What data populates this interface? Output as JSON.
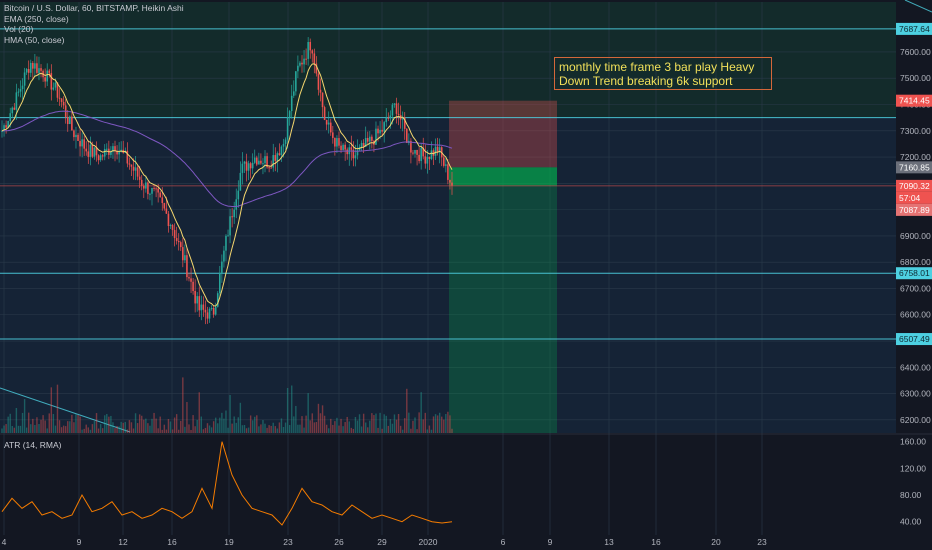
{
  "legend": {
    "symbol": "Bitcoin / U.S. Dollar, 60, BITSTAMP, Heikin Ashi",
    "ema": "EMA (250, close)",
    "vol": "Vol (20)",
    "hma": "HMA (50, close)"
  },
  "atr_legend": "ATR (14, RMA)",
  "annotation": {
    "line1": "monthly time frame 3 bar play Heavy",
    "line2": "Down Trend breaking 6k support"
  },
  "colors": {
    "background": "#131722",
    "up": "#26a69a",
    "down": "#ef5350",
    "hline": "#4dd0e1",
    "ema": "#7e57c2",
    "hma": "#f5d76e",
    "atr": "#f57c00",
    "stop_zone": "#ef5350",
    "target_zone": "#00c853",
    "note_border": "#d4673a",
    "note_text": "#f1e05a"
  },
  "chart_data": [
    {
      "type": "candlestick",
      "symbol": "BTCUSD",
      "interval": "60",
      "ylim": [
        6150,
        7790
      ],
      "y_ticks": [
        6200,
        6300,
        6400,
        6500,
        6600,
        6700,
        6800,
        6900,
        7000,
        7100,
        7200,
        7300,
        7400,
        7500,
        7600
      ],
      "y_tick_labels": [
        "6200.00",
        "6300.00",
        "6400.00",
        "6500.00",
        "6600.00",
        "6700.00",
        "6800.00",
        "6900.00",
        "7000.00",
        "7100.00",
        "7200.00",
        "7300.00",
        "7400.00",
        "7500.00",
        "7600.00"
      ],
      "x_labels": [
        "4",
        "9",
        "12",
        "16",
        "19",
        "23",
        "26",
        "29",
        "2020",
        "6",
        "9",
        "13",
        "16",
        "20",
        "23"
      ],
      "close_path": [
        {
          "label": "4",
          "close": 7300
        },
        {
          "label": "",
          "close": 7420
        },
        {
          "label": "",
          "close": 7560
        },
        {
          "label": "",
          "close": 7520
        },
        {
          "label": "9",
          "close": 7440
        },
        {
          "label": "",
          "close": 7300
        },
        {
          "label": "12",
          "close": 7230
        },
        {
          "label": "",
          "close": 7200
        },
        {
          "label": "",
          "close": 7250
        },
        {
          "label": "",
          "close": 7180
        },
        {
          "label": "16",
          "close": 7100
        },
        {
          "label": "",
          "close": 7050
        },
        {
          "label": "",
          "close": 6950
        },
        {
          "label": "",
          "close": 6800
        },
        {
          "label": "",
          "close": 6620
        },
        {
          "label": "",
          "close": 6600
        },
        {
          "label": "19",
          "close": 6900
        },
        {
          "label": "",
          "close": 7150
        },
        {
          "label": "",
          "close": 7200
        },
        {
          "label": "",
          "close": 7180
        },
        {
          "label": "",
          "close": 7250
        },
        {
          "label": "23",
          "close": 7530
        },
        {
          "label": "",
          "close": 7640
        },
        {
          "label": "",
          "close": 7330
        },
        {
          "label": "26",
          "close": 7230
        },
        {
          "label": "",
          "close": 7200
        },
        {
          "label": "",
          "close": 7250
        },
        {
          "label": "29",
          "close": 7300
        },
        {
          "label": "",
          "close": 7400
        },
        {
          "label": "",
          "close": 7240
        },
        {
          "label": "2020",
          "close": 7200
        },
        {
          "label": "",
          "close": 7230
        },
        {
          "label": "",
          "close": 7092
        }
      ],
      "horizontal_levels": [
        7687.64,
        7350,
        7090.32,
        6758.01,
        6507.49
      ],
      "price_badges": [
        {
          "label": "7687.64",
          "value": 7687.64,
          "kind": "level"
        },
        {
          "label": "7414.45",
          "value": 7414.45,
          "kind": "stop"
        },
        {
          "label": "7160.85",
          "value": 7160.85,
          "kind": "entry"
        },
        {
          "label": "7090.32",
          "value": 7090.32,
          "kind": "last"
        },
        {
          "label": "57:04",
          "value": 7070,
          "kind": "countdown"
        },
        {
          "label": "7087.89",
          "value": 7087.89,
          "kind": "pivot"
        },
        {
          "label": "6758.01",
          "value": 6758.01,
          "kind": "level"
        },
        {
          "label": "6507.49",
          "value": 6507.49,
          "kind": "level"
        }
      ],
      "short_position": {
        "entry": 7160.85,
        "stop": 7414.45,
        "target": 6150
      }
    },
    {
      "type": "line",
      "name": "ATR (14, RMA)",
      "ylim": [
        20,
        170
      ],
      "y_ticks": [
        40,
        80,
        120,
        160
      ],
      "y_tick_labels": [
        "40.00",
        "80.00",
        "120.00",
        "160.00"
      ],
      "values": [
        55,
        75,
        60,
        70,
        50,
        55,
        45,
        50,
        80,
        55,
        60,
        70,
        50,
        55,
        45,
        50,
        60,
        55,
        45,
        55,
        90,
        60,
        160,
        110,
        80,
        60,
        55,
        50,
        35,
        60,
        90,
        70,
        65,
        55,
        50,
        65,
        55,
        45,
        50,
        45,
        40,
        50,
        45,
        40,
        38,
        40
      ]
    }
  ]
}
